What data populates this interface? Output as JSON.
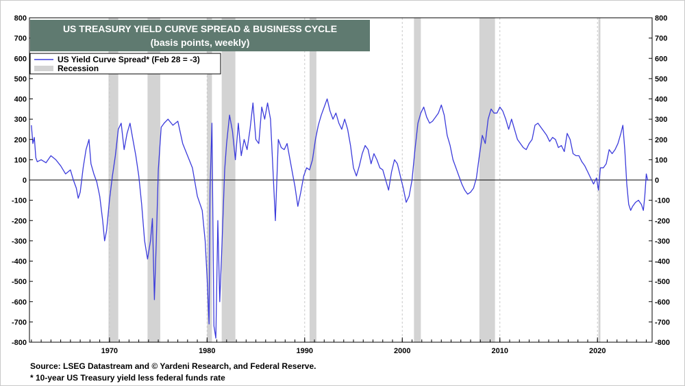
{
  "chart_data": {
    "type": "line",
    "title": "US TREASURY YIELD CURVE SPREAD & BUSINESS CYCLE",
    "subtitle": "(basis points, weekly)",
    "xlabel": "",
    "ylabel": "",
    "xlim": [
      1961.8,
      2025.6
    ],
    "ylim": [
      -800,
      800
    ],
    "y_ticks": [
      -800,
      -700,
      -600,
      -500,
      -400,
      -300,
      -200,
      -100,
      0,
      100,
      200,
      300,
      400,
      500,
      600,
      700,
      800
    ],
    "y_tick_labels": [
      "-800",
      "-700",
      "-600",
      "-500",
      "-400",
      "-300",
      "-200",
      "-100",
      "0",
      "100",
      "200",
      "300",
      "400",
      "500",
      "600",
      "700",
      "800"
    ],
    "x_ticks": [
      1970,
      1980,
      1990,
      2000,
      2010,
      2020
    ],
    "x_tick_labels": [
      "1970",
      "1980",
      "1990",
      "2000",
      "2010",
      "2020"
    ],
    "grid": "vertical dashed at decades and y-ticks",
    "legend_position": "top-left",
    "legend": [
      {
        "label": "US Yield Curve Spread* (Feb 28 = -3)",
        "kind": "line",
        "color": "#3a3adb"
      },
      {
        "label": "Recession",
        "kind": "patch",
        "color": "#d3d3d3"
      }
    ],
    "recessions": [
      [
        1969.9,
        1970.9
      ],
      [
        1973.9,
        1975.2
      ],
      [
        1980.0,
        1980.5
      ],
      [
        1981.5,
        1982.9
      ],
      [
        1990.5,
        1991.2
      ],
      [
        2001.2,
        2001.9
      ],
      [
        2007.9,
        2009.5
      ],
      [
        2020.1,
        2020.3
      ]
    ],
    "series": [
      {
        "name": "US Yield Curve Spread* (Feb 28 = -3)",
        "color": "#3a3adb",
        "points": [
          [
            1962.0,
            270
          ],
          [
            1962.15,
            180
          ],
          [
            1962.3,
            210
          ],
          [
            1962.45,
            110
          ],
          [
            1962.6,
            90
          ],
          [
            1963.0,
            100
          ],
          [
            1963.5,
            85
          ],
          [
            1964.0,
            120
          ],
          [
            1964.5,
            100
          ],
          [
            1965.0,
            70
          ],
          [
            1965.5,
            30
          ],
          [
            1966.0,
            50
          ],
          [
            1966.3,
            0
          ],
          [
            1966.6,
            -40
          ],
          [
            1966.8,
            -90
          ],
          [
            1967.0,
            -60
          ],
          [
            1967.3,
            60
          ],
          [
            1967.6,
            150
          ],
          [
            1967.9,
            200
          ],
          [
            1968.1,
            80
          ],
          [
            1968.4,
            30
          ],
          [
            1968.7,
            -10
          ],
          [
            1969.0,
            -80
          ],
          [
            1969.3,
            -200
          ],
          [
            1969.5,
            -300
          ],
          [
            1969.7,
            -250
          ],
          [
            1970.0,
            -100
          ],
          [
            1970.3,
            20
          ],
          [
            1970.6,
            120
          ],
          [
            1970.9,
            250
          ],
          [
            1971.2,
            280
          ],
          [
            1971.5,
            150
          ],
          [
            1971.8,
            230
          ],
          [
            1972.1,
            280
          ],
          [
            1972.4,
            200
          ],
          [
            1972.7,
            120
          ],
          [
            1973.0,
            20
          ],
          [
            1973.3,
            -120
          ],
          [
            1973.6,
            -300
          ],
          [
            1973.9,
            -390
          ],
          [
            1974.2,
            -300
          ],
          [
            1974.4,
            -190
          ],
          [
            1974.6,
            -590
          ],
          [
            1974.8,
            -300
          ],
          [
            1975.0,
            50
          ],
          [
            1975.3,
            260
          ],
          [
            1975.6,
            280
          ],
          [
            1976.0,
            300
          ],
          [
            1976.5,
            270
          ],
          [
            1977.0,
            290
          ],
          [
            1977.5,
            180
          ],
          [
            1978.0,
            120
          ],
          [
            1978.5,
            60
          ],
          [
            1979.0,
            -80
          ],
          [
            1979.5,
            -150
          ],
          [
            1979.8,
            -300
          ],
          [
            1980.0,
            -480
          ],
          [
            1980.2,
            -710
          ],
          [
            1980.3,
            -50
          ],
          [
            1980.5,
            280
          ],
          [
            1980.7,
            -720
          ],
          [
            1980.9,
            -780
          ],
          [
            1981.1,
            -200
          ],
          [
            1981.3,
            -600
          ],
          [
            1981.5,
            -350
          ],
          [
            1981.8,
            50
          ],
          [
            1982.0,
            180
          ],
          [
            1982.3,
            320
          ],
          [
            1982.6,
            240
          ],
          [
            1982.9,
            100
          ],
          [
            1983.2,
            280
          ],
          [
            1983.5,
            120
          ],
          [
            1983.8,
            200
          ],
          [
            1984.1,
            150
          ],
          [
            1984.4,
            250
          ],
          [
            1984.7,
            380
          ],
          [
            1985.0,
            200
          ],
          [
            1985.3,
            180
          ],
          [
            1985.6,
            360
          ],
          [
            1985.9,
            300
          ],
          [
            1986.2,
            380
          ],
          [
            1986.5,
            300
          ],
          [
            1986.8,
            0
          ],
          [
            1987.0,
            -200
          ],
          [
            1987.3,
            200
          ],
          [
            1987.6,
            160
          ],
          [
            1987.9,
            150
          ],
          [
            1988.2,
            180
          ],
          [
            1988.5,
            100
          ],
          [
            1988.8,
            20
          ],
          [
            1989.0,
            -30
          ],
          [
            1989.3,
            -130
          ],
          [
            1989.6,
            -60
          ],
          [
            1989.9,
            20
          ],
          [
            1990.2,
            60
          ],
          [
            1990.5,
            50
          ],
          [
            1990.8,
            100
          ],
          [
            1991.1,
            200
          ],
          [
            1991.4,
            270
          ],
          [
            1991.7,
            320
          ],
          [
            1992.0,
            360
          ],
          [
            1992.3,
            400
          ],
          [
            1992.6,
            340
          ],
          [
            1992.9,
            300
          ],
          [
            1993.2,
            330
          ],
          [
            1993.5,
            280
          ],
          [
            1993.8,
            250
          ],
          [
            1994.1,
            300
          ],
          [
            1994.4,
            250
          ],
          [
            1994.7,
            170
          ],
          [
            1995.0,
            60
          ],
          [
            1995.3,
            20
          ],
          [
            1995.6,
            70
          ],
          [
            1995.9,
            130
          ],
          [
            1996.2,
            170
          ],
          [
            1996.5,
            150
          ],
          [
            1996.8,
            80
          ],
          [
            1997.1,
            130
          ],
          [
            1997.4,
            100
          ],
          [
            1997.7,
            60
          ],
          [
            1998.0,
            50
          ],
          [
            1998.3,
            0
          ],
          [
            1998.6,
            -50
          ],
          [
            1998.9,
            40
          ],
          [
            1999.2,
            100
          ],
          [
            1999.5,
            80
          ],
          [
            1999.8,
            20
          ],
          [
            2000.1,
            -40
          ],
          [
            2000.4,
            -110
          ],
          [
            2000.7,
            -80
          ],
          [
            2001.0,
            0
          ],
          [
            2001.3,
            150
          ],
          [
            2001.6,
            280
          ],
          [
            2001.9,
            330
          ],
          [
            2002.2,
            360
          ],
          [
            2002.5,
            310
          ],
          [
            2002.8,
            280
          ],
          [
            2003.1,
            290
          ],
          [
            2003.4,
            310
          ],
          [
            2003.7,
            330
          ],
          [
            2004.0,
            370
          ],
          [
            2004.3,
            320
          ],
          [
            2004.6,
            220
          ],
          [
            2004.9,
            170
          ],
          [
            2005.2,
            100
          ],
          [
            2005.5,
            60
          ],
          [
            2005.8,
            20
          ],
          [
            2006.1,
            -20
          ],
          [
            2006.4,
            -50
          ],
          [
            2006.7,
            -70
          ],
          [
            2007.0,
            -60
          ],
          [
            2007.3,
            -40
          ],
          [
            2007.6,
            10
          ],
          [
            2007.9,
            120
          ],
          [
            2008.2,
            220
          ],
          [
            2008.5,
            180
          ],
          [
            2008.8,
            300
          ],
          [
            2009.1,
            350
          ],
          [
            2009.4,
            330
          ],
          [
            2009.7,
            330
          ],
          [
            2010.0,
            360
          ],
          [
            2010.3,
            340
          ],
          [
            2010.6,
            300
          ],
          [
            2010.9,
            250
          ],
          [
            2011.2,
            300
          ],
          [
            2011.5,
            250
          ],
          [
            2011.8,
            200
          ],
          [
            2012.1,
            180
          ],
          [
            2012.4,
            160
          ],
          [
            2012.7,
            150
          ],
          [
            2013.0,
            180
          ],
          [
            2013.3,
            200
          ],
          [
            2013.6,
            270
          ],
          [
            2013.9,
            280
          ],
          [
            2014.2,
            260
          ],
          [
            2014.5,
            240
          ],
          [
            2014.8,
            220
          ],
          [
            2015.1,
            190
          ],
          [
            2015.4,
            210
          ],
          [
            2015.7,
            200
          ],
          [
            2016.0,
            160
          ],
          [
            2016.3,
            170
          ],
          [
            2016.6,
            140
          ],
          [
            2016.9,
            230
          ],
          [
            2017.2,
            200
          ],
          [
            2017.5,
            130
          ],
          [
            2017.8,
            120
          ],
          [
            2018.1,
            120
          ],
          [
            2018.4,
            90
          ],
          [
            2018.7,
            70
          ],
          [
            2019.0,
            40
          ],
          [
            2019.3,
            10
          ],
          [
            2019.6,
            -20
          ],
          [
            2019.9,
            10
          ],
          [
            2020.1,
            -50
          ],
          [
            2020.3,
            60
          ],
          [
            2020.6,
            60
          ],
          [
            2020.9,
            80
          ],
          [
            2021.2,
            150
          ],
          [
            2021.5,
            130
          ],
          [
            2021.8,
            150
          ],
          [
            2022.1,
            180
          ],
          [
            2022.4,
            230
          ],
          [
            2022.6,
            270
          ],
          [
            2022.8,
            150
          ],
          [
            2023.0,
            -20
          ],
          [
            2023.2,
            -120
          ],
          [
            2023.4,
            -150
          ],
          [
            2023.6,
            -130
          ],
          [
            2023.9,
            -110
          ],
          [
            2024.2,
            -100
          ],
          [
            2024.5,
            -120
          ],
          [
            2024.7,
            -150
          ],
          [
            2024.85,
            -80
          ],
          [
            2025.0,
            30
          ],
          [
            2025.15,
            -3
          ]
        ]
      }
    ]
  },
  "notes": {
    "source": "Source: LSEG Datastream and © Yardeni Research, and Federal Reserve.",
    "footnote": "* 10-year US Treasury yield less federal funds rate"
  }
}
